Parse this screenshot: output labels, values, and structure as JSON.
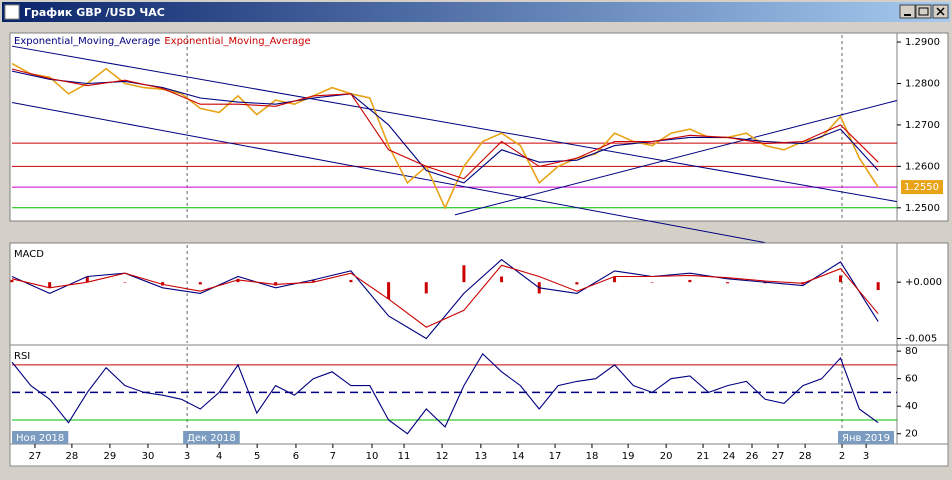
{
  "window": {
    "title": "График GBP /USD ЧАС"
  },
  "chart_data": [
    {
      "type": "line",
      "xlim": [
        0,
        23.5
      ],
      "ylim": [
        1.2473,
        1.2917
      ],
      "yticks": [
        {
          "value": 1.25,
          "label": "1.2500"
        },
        {
          "value": 1.26,
          "label": "1.2600"
        },
        {
          "value": 1.27,
          "label": "1.2700"
        },
        {
          "value": 1.28,
          "label": "1.2800"
        },
        {
          "value": 1.29,
          "label": "1.2900"
        }
      ],
      "series": [
        {
          "color": "#e8a317",
          "x": [
            0,
            0.5,
            1,
            1.5,
            2,
            2.5,
            3,
            3.5,
            4,
            4.5,
            5,
            5.5,
            6,
            6.5,
            7,
            7.5,
            8,
            8.5,
            9,
            9.5,
            10,
            10.5,
            11,
            11.5,
            12,
            12.5,
            13,
            13.5,
            14,
            14.5,
            15,
            15.5,
            16,
            16.5,
            17,
            17.5,
            18,
            18.5,
            19,
            19.5,
            20,
            20.5,
            21,
            21.5,
            22,
            22.5,
            23
          ],
          "values": [
            1.2848,
            1.2823,
            1.2815,
            1.2775,
            1.28,
            1.2836,
            1.28,
            1.279,
            1.2786,
            1.2775,
            1.274,
            1.273,
            1.277,
            1.2725,
            1.276,
            1.275,
            1.277,
            1.279,
            1.2775,
            1.2765,
            1.265,
            1.256,
            1.26,
            1.25,
            1.26,
            1.266,
            1.268,
            1.265,
            1.256,
            1.26,
            1.262,
            1.263,
            1.268,
            1.266,
            1.265,
            1.268,
            1.269,
            1.267,
            1.267,
            1.268,
            1.265,
            1.264,
            1.266,
            1.267,
            1.272,
            1.262,
            1.255
          ]
        },
        {
          "name": "Exponential_Moving_Average",
          "color": "#000080",
          "x": [
            0,
            1,
            2,
            3,
            4,
            5,
            6,
            7,
            8,
            9,
            10,
            11,
            12,
            13,
            14,
            15,
            16,
            17,
            18,
            19,
            20,
            21,
            22,
            23
          ],
          "values": [
            1.283,
            1.281,
            1.28,
            1.2805,
            1.279,
            1.2765,
            1.2755,
            1.275,
            1.2765,
            1.2775,
            1.27,
            1.259,
            1.256,
            1.264,
            1.261,
            1.2615,
            1.265,
            1.266,
            1.267,
            1.267,
            1.266,
            1.2655,
            1.269,
            1.259
          ]
        },
        {
          "name": "Exponential_Moving_Average",
          "color": "#cc0000",
          "x": [
            0,
            1,
            2,
            3,
            4,
            5,
            6,
            7,
            8,
            9,
            10,
            11,
            12,
            13,
            14,
            15,
            16,
            17,
            18,
            19,
            20,
            21,
            22,
            23
          ],
          "values": [
            1.2835,
            1.2812,
            1.2795,
            1.2808,
            1.2788,
            1.275,
            1.275,
            1.2745,
            1.277,
            1.2775,
            1.264,
            1.26,
            1.257,
            1.266,
            1.26,
            1.262,
            1.266,
            1.266,
            1.2675,
            1.267,
            1.2655,
            1.266,
            1.27,
            1.261
          ]
        }
      ],
      "levels": [
        {
          "value": 1.2656,
          "color": "#cc0000"
        },
        {
          "value": 1.26,
          "color": "#cc0000"
        },
        {
          "value": 1.255,
          "color": "#cc00cc"
        },
        {
          "value": 1.25,
          "color": "#00bb00"
        }
      ],
      "trendlines": [
        {
          "x": [
            0,
            23.5
          ],
          "values": [
            1.289,
            1.2515
          ],
          "color": "#000080"
        },
        {
          "x": [
            0,
            20
          ],
          "values": [
            1.2754,
            1.2416
          ],
          "color": "#000080"
        },
        {
          "x": [
            11.76,
            23.5
          ],
          "values": [
            1.2483,
            1.2759
          ],
          "color": "#000080"
        }
      ],
      "last_price": {
        "value": 1.255,
        "label": "1.2550"
      }
    },
    {
      "type": "line",
      "title": "MACD",
      "xlim": [
        0,
        23.5
      ],
      "ylim": [
        -0.0054,
        0.0033
      ],
      "yticks": [
        {
          "value": 0,
          "label": "+0.000"
        },
        {
          "value": -0.005,
          "label": "-0.005"
        }
      ],
      "series": [
        {
          "type": "bar",
          "color": "#cc0000",
          "x": [
            0,
            1,
            2,
            3,
            4,
            5,
            6,
            7,
            8,
            9,
            10,
            11,
            12,
            13,
            14,
            15,
            16,
            17,
            18,
            19,
            20,
            21,
            22,
            23
          ],
          "values": [
            0.0002,
            -0.0005,
            0.0005,
            0,
            -0.0003,
            -0.0002,
            0.0003,
            -0.0003,
            0.0002,
            0.0002,
            -0.0015,
            -0.001,
            0.0015,
            0.0005,
            -0.001,
            -0.0002,
            0.0005,
            0,
            0.0002,
            -0.0001,
            -0.0001,
            -0.0002,
            0.0006,
            -0.0007
          ]
        },
        {
          "color": "#000080",
          "x": [
            0,
            1,
            2,
            3,
            4,
            5,
            6,
            7,
            8,
            9,
            10,
            11,
            12,
            13,
            14,
            15,
            16,
            17,
            18,
            19,
            20,
            21,
            22,
            23
          ],
          "values": [
            0.0005,
            -0.001,
            0.0005,
            0.0008,
            -0.0005,
            -0.001,
            0.0005,
            -0.0005,
            0.0002,
            0.001,
            -0.003,
            -0.005,
            -0.001,
            0.002,
            -0.0005,
            -0.001,
            0.001,
            0.0005,
            0.0008,
            0.0003,
            0,
            -0.0003,
            0.0018,
            -0.0035
          ]
        },
        {
          "color": "#cc0000",
          "x": [
            0,
            1,
            2,
            3,
            4,
            5,
            6,
            7,
            8,
            9,
            10,
            11,
            12,
            13,
            14,
            15,
            16,
            17,
            18,
            19,
            20,
            21,
            22,
            23
          ],
          "values": [
            0.0003,
            -0.0005,
            0,
            0.0008,
            -0.0002,
            -0.0008,
            0.0002,
            -0.0002,
            0,
            0.0008,
            -0.0015,
            -0.004,
            -0.0025,
            0.0015,
            0.0005,
            -0.0008,
            0.0005,
            0.0005,
            0.0006,
            0.0004,
            0.0001,
            -0.0001,
            0.0012,
            -0.0028
          ]
        }
      ]
    },
    {
      "type": "line",
      "title": "RSI",
      "xlim": [
        0,
        23.5
      ],
      "ylim": [
        14,
        83
      ],
      "yticks": [
        20,
        40,
        60,
        80
      ],
      "levels": [
        {
          "value": 70,
          "color": "#cc0000"
        },
        {
          "value": 50,
          "color": "#000080",
          "dash": true
        },
        {
          "value": 30,
          "color": "#00bb00"
        }
      ],
      "series": [
        {
          "color": "#000080",
          "x": [
            0,
            0.5,
            1,
            1.5,
            2,
            2.5,
            3,
            3.5,
            4,
            4.5,
            5,
            5.5,
            6,
            6.5,
            7,
            7.5,
            8,
            8.5,
            9,
            9.5,
            10,
            10.5,
            11,
            11.5,
            12,
            12.5,
            13,
            13.5,
            14,
            14.5,
            15,
            15.5,
            16,
            16.5,
            17,
            17.5,
            18,
            18.5,
            19,
            19.5,
            20,
            20.5,
            21,
            21.5,
            22,
            22.5,
            23
          ],
          "values": [
            72,
            55,
            45,
            28,
            50,
            68,
            55,
            50,
            48,
            45,
            38,
            50,
            70,
            35,
            55,
            48,
            60,
            65,
            55,
            55,
            30,
            20,
            38,
            25,
            55,
            78,
            65,
            55,
            38,
            55,
            58,
            60,
            70,
            55,
            50,
            60,
            62,
            50,
            55,
            58,
            45,
            42,
            55,
            60,
            75,
            38,
            28
          ]
        }
      ],
      "xticks": [
        {
          "value": 0.61,
          "label": "27"
        },
        {
          "value": 1.59,
          "label": "28"
        },
        {
          "value": 2.6,
          "label": "29"
        },
        {
          "value": 3.61,
          "label": "30"
        },
        {
          "value": 4.65,
          "label": "3"
        },
        {
          "value": 5.5,
          "label": "4"
        },
        {
          "value": 6.51,
          "label": "5"
        },
        {
          "value": 7.54,
          "label": "6"
        },
        {
          "value": 8.52,
          "label": "7"
        },
        {
          "value": 9.56,
          "label": "10"
        },
        {
          "value": 10.41,
          "label": "11"
        },
        {
          "value": 11.42,
          "label": "12"
        },
        {
          "value": 12.45,
          "label": "13"
        },
        {
          "value": 13.44,
          "label": "14"
        },
        {
          "value": 14.42,
          "label": "17"
        },
        {
          "value": 15.4,
          "label": "18"
        },
        {
          "value": 16.36,
          "label": "19"
        },
        {
          "value": 17.37,
          "label": "20"
        },
        {
          "value": 18.35,
          "label": "21"
        },
        {
          "value": 19.04,
          "label": "24"
        },
        {
          "value": 19.65,
          "label": "26"
        },
        {
          "value": 20.34,
          "label": "27"
        },
        {
          "value": 21.06,
          "label": "28"
        },
        {
          "value": 22.04,
          "label": "2"
        },
        {
          "value": 22.68,
          "label": "3"
        }
      ],
      "month_ticks": [
        {
          "value": 0,
          "label": "Ноя 2018"
        },
        {
          "value": 4.65,
          "label": "Дек 2018"
        },
        {
          "value": 22.04,
          "label": "Янв 2019"
        }
      ]
    }
  ]
}
